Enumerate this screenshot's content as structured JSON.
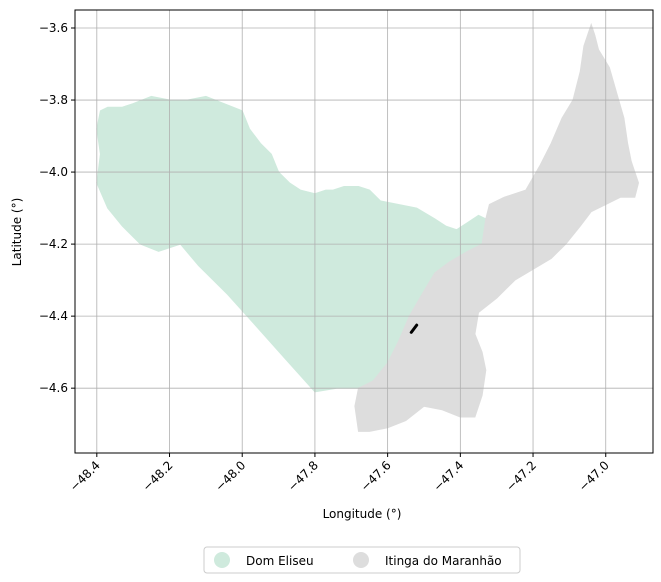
{
  "chart_data": {
    "type": "map",
    "xlabel": "Longitude (°)",
    "ylabel": "Latitude (°)",
    "xlim": [
      -48.46,
      -46.87
    ],
    "ylim": [
      -4.78,
      -3.55
    ],
    "x_ticks": [
      -48.4,
      -48.2,
      -48.0,
      -47.8,
      -47.6,
      -47.4,
      -47.2,
      -47.0
    ],
    "y_ticks": [
      -3.6,
      -3.8,
      -4.0,
      -4.2,
      -4.4,
      -4.6
    ],
    "x_tick_labels": [
      "−48.4",
      "−48.2",
      "−48.0",
      "−47.8",
      "−47.6",
      "−47.4",
      "−47.2",
      "−47.0"
    ],
    "y_tick_labels": [
      "−3.6",
      "−3.8",
      "−4.0",
      "−4.2",
      "−4.4",
      "−4.6"
    ],
    "grid": true,
    "legend_position": "bottom-center",
    "regions": [
      {
        "name": "Dom Eliseu",
        "color": "#cfeadd",
        "polygon": [
          [
            -48.39,
            -3.83
          ],
          [
            -48.37,
            -3.82
          ],
          [
            -48.33,
            -3.82
          ],
          [
            -48.3,
            -3.81
          ],
          [
            -48.25,
            -3.79
          ],
          [
            -48.2,
            -3.8
          ],
          [
            -48.15,
            -3.8
          ],
          [
            -48.1,
            -3.79
          ],
          [
            -48.05,
            -3.81
          ],
          [
            -48.0,
            -3.83
          ],
          [
            -47.98,
            -3.88
          ],
          [
            -47.95,
            -3.92
          ],
          [
            -47.92,
            -3.95
          ],
          [
            -47.9,
            -4.0
          ],
          [
            -47.87,
            -4.03
          ],
          [
            -47.84,
            -4.05
          ],
          [
            -47.8,
            -4.06
          ],
          [
            -47.77,
            -4.05
          ],
          [
            -47.75,
            -4.05
          ],
          [
            -47.72,
            -4.04
          ],
          [
            -47.68,
            -4.04
          ],
          [
            -47.65,
            -4.05
          ],
          [
            -47.62,
            -4.08
          ],
          [
            -47.57,
            -4.09
          ],
          [
            -47.52,
            -4.1
          ],
          [
            -47.47,
            -4.13
          ],
          [
            -47.44,
            -4.15
          ],
          [
            -47.41,
            -4.16
          ],
          [
            -47.38,
            -4.14
          ],
          [
            -47.35,
            -4.12
          ],
          [
            -47.33,
            -4.13
          ],
          [
            -47.32,
            -4.17
          ],
          [
            -47.34,
            -4.22
          ],
          [
            -47.38,
            -4.27
          ],
          [
            -47.43,
            -4.29
          ],
          [
            -47.49,
            -4.33
          ],
          [
            -47.54,
            -4.4
          ],
          [
            -47.57,
            -4.47
          ],
          [
            -47.6,
            -4.53
          ],
          [
            -47.64,
            -4.58
          ],
          [
            -47.68,
            -4.6
          ],
          [
            -47.74,
            -4.6
          ],
          [
            -47.8,
            -4.61
          ],
          [
            -47.88,
            -4.52
          ],
          [
            -47.96,
            -4.43
          ],
          [
            -48.04,
            -4.34
          ],
          [
            -48.12,
            -4.26
          ],
          [
            -48.17,
            -4.2
          ],
          [
            -48.23,
            -4.22
          ],
          [
            -48.28,
            -4.2
          ],
          [
            -48.33,
            -4.15
          ],
          [
            -48.37,
            -4.1
          ],
          [
            -48.4,
            -4.03
          ],
          [
            -48.39,
            -3.95
          ],
          [
            -48.4,
            -3.88
          ]
        ]
      },
      {
        "name": "Itinga do Maranhão",
        "color": "#dddddd",
        "polygon": [
          [
            -47.04,
            -3.59
          ],
          [
            -47.03,
            -3.62
          ],
          [
            -47.02,
            -3.66
          ],
          [
            -46.99,
            -3.71
          ],
          [
            -46.97,
            -3.78
          ],
          [
            -46.95,
            -3.85
          ],
          [
            -46.94,
            -3.92
          ],
          [
            -46.93,
            -3.97
          ],
          [
            -46.91,
            -4.03
          ],
          [
            -46.92,
            -4.07
          ],
          [
            -46.96,
            -4.07
          ],
          [
            -47.0,
            -4.09
          ],
          [
            -47.04,
            -4.11
          ],
          [
            -47.07,
            -4.15
          ],
          [
            -47.11,
            -4.2
          ],
          [
            -47.15,
            -4.24
          ],
          [
            -47.2,
            -4.27
          ],
          [
            -47.25,
            -4.3
          ],
          [
            -47.3,
            -4.35
          ],
          [
            -47.35,
            -4.39
          ],
          [
            -47.36,
            -4.45
          ],
          [
            -47.34,
            -4.5
          ],
          [
            -47.33,
            -4.55
          ],
          [
            -47.34,
            -4.62
          ],
          [
            -47.36,
            -4.68
          ],
          [
            -47.4,
            -4.68
          ],
          [
            -47.45,
            -4.66
          ],
          [
            -47.5,
            -4.65
          ],
          [
            -47.55,
            -4.69
          ],
          [
            -47.6,
            -4.71
          ],
          [
            -47.65,
            -4.72
          ],
          [
            -47.68,
            -4.72
          ],
          [
            -47.69,
            -4.65
          ],
          [
            -47.68,
            -4.6
          ],
          [
            -47.64,
            -4.58
          ],
          [
            -47.6,
            -4.53
          ],
          [
            -47.57,
            -4.47
          ],
          [
            -47.54,
            -4.4
          ],
          [
            -47.5,
            -4.33
          ],
          [
            -47.47,
            -4.28
          ],
          [
            -47.43,
            -4.25
          ],
          [
            -47.38,
            -4.22
          ],
          [
            -47.34,
            -4.2
          ],
          [
            -47.33,
            -4.13
          ],
          [
            -47.32,
            -4.09
          ],
          [
            -47.28,
            -4.07
          ],
          [
            -47.22,
            -4.05
          ],
          [
            -47.18,
            -3.98
          ],
          [
            -47.15,
            -3.92
          ],
          [
            -47.12,
            -3.85
          ],
          [
            -47.09,
            -3.8
          ],
          [
            -47.07,
            -3.72
          ],
          [
            -47.06,
            -3.65
          ]
        ]
      }
    ],
    "marker_line": [
      [
        -47.535,
        -4.445
      ],
      [
        -47.52,
        -4.425
      ]
    ],
    "legend": [
      {
        "label": "Dom Eliseu",
        "color": "#cfeadd"
      },
      {
        "label": "Itinga do Maranhão",
        "color": "#dddddd"
      }
    ]
  }
}
